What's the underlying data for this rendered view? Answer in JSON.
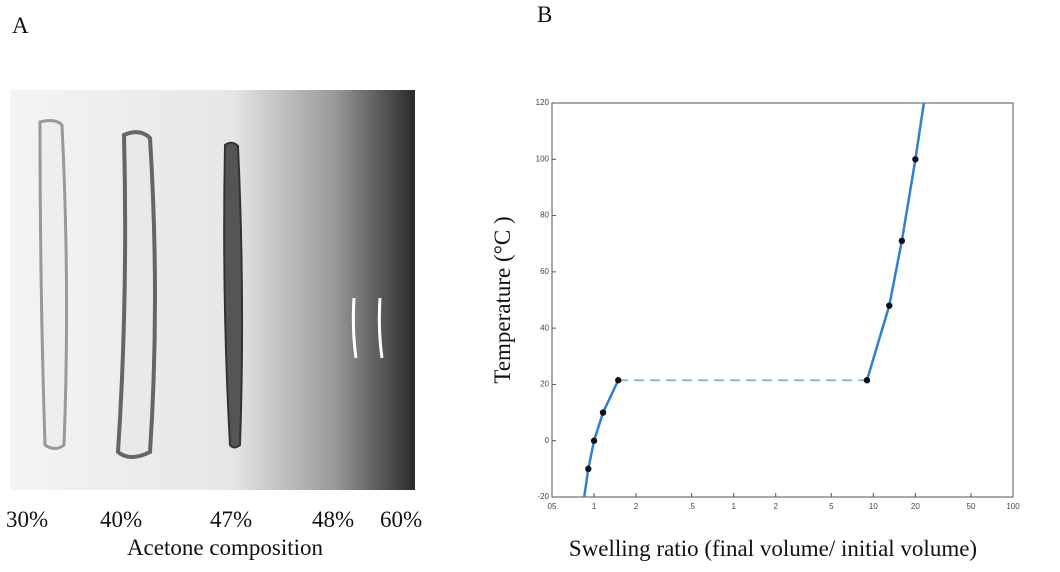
{
  "panel_a": {
    "label": "A",
    "percent_labels": [
      "30%",
      "40%",
      "47%",
      "48%",
      "60%"
    ],
    "caption": "Acetone composition"
  },
  "chart_data": {
    "type": "line",
    "panel_label": "B",
    "x_label": "Swelling ratio (final volume/ initial volume)",
    "y_label": "Temperature (°C )",
    "xscale": "log",
    "xlim": [
      0.05,
      100
    ],
    "ylim": [
      -20,
      120
    ],
    "xticks": [
      {
        "value": 0.05,
        "label": "05"
      },
      {
        "value": 0.1,
        "label": "1"
      },
      {
        "value": 0.2,
        "label": "2"
      },
      {
        "value": 0.5,
        "label": ".5"
      },
      1,
      2,
      5,
      10,
      20,
      50,
      100
    ],
    "yticks": [
      -20,
      0,
      20,
      40,
      60,
      80,
      100,
      120
    ],
    "series": [
      {
        "style": "solid",
        "color": "#2f7fd6",
        "x": [
          0.085,
          0.091,
          0.1,
          0.116,
          0.149
        ],
        "values": [
          -20,
          -10,
          0,
          10,
          21.5
        ]
      },
      {
        "style": "dashed",
        "color": "#8fb5e0",
        "x": [
          0.149,
          9
        ],
        "values": [
          21.5,
          21.5
        ]
      },
      {
        "style": "solid",
        "color": "#2f7fd6",
        "x": [
          9,
          13,
          16,
          20,
          23
        ],
        "values": [
          21.5,
          48,
          71,
          100,
          120
        ]
      },
      {
        "style": "points",
        "color": "#111111",
        "x": [
          0.091,
          0.1,
          0.116,
          0.149,
          9,
          13,
          16,
          20
        ],
        "values": [
          -10,
          0,
          10,
          21.5,
          21.5,
          48,
          71,
          100
        ]
      }
    ]
  }
}
